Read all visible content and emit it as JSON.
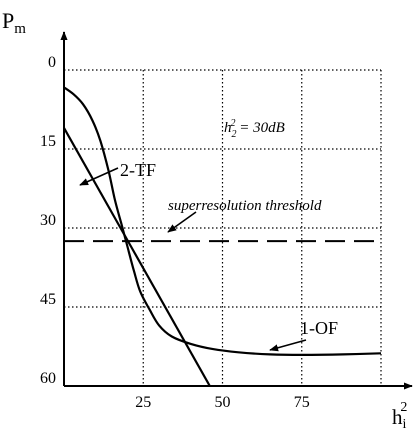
{
  "chart_data": {
    "type": "line",
    "ylabel": {
      "main": "P",
      "sub": "m"
    },
    "xlabel": {
      "main": "h",
      "sub": "i",
      "sup": "2"
    },
    "xlim": [
      0,
      100
    ],
    "ylim": [
      0,
      60
    ],
    "y_inverted": true,
    "x_ticks": [
      25,
      50,
      75
    ],
    "x_tick_labels": [
      "25",
      "50",
      "75"
    ],
    "y_ticks": [
      0,
      15,
      30,
      45,
      60
    ],
    "y_tick_labels": [
      "0",
      "15",
      "30",
      "45",
      "60"
    ],
    "grid": {
      "x": [
        25,
        50,
        75,
        100
      ],
      "y": [
        0,
        15,
        30,
        45
      ],
      "style": "dotted"
    },
    "series": [
      {
        "name": "1-OF",
        "style": "solid",
        "points": [
          [
            0,
            3.3
          ],
          [
            3,
            4.6
          ],
          [
            6,
            6.5
          ],
          [
            9,
            9.6
          ],
          [
            11.5,
            13.5
          ],
          [
            14,
            19
          ],
          [
            16,
            24.5
          ],
          [
            18,
            29
          ],
          [
            20,
            33.5
          ],
          [
            22,
            38
          ],
          [
            24,
            42
          ],
          [
            27,
            45.5
          ],
          [
            30,
            48.5
          ],
          [
            34,
            50.6
          ],
          [
            40,
            52
          ],
          [
            47,
            53
          ],
          [
            55,
            53.6
          ],
          [
            65,
            54
          ],
          [
            75,
            54.1
          ],
          [
            88,
            54
          ],
          [
            100,
            53.8
          ]
        ]
      },
      {
        "name": "2-TF",
        "style": "solid",
        "points": [
          [
            0,
            11
          ],
          [
            46,
            60
          ]
        ]
      }
    ],
    "threshold": {
      "value": 32.5,
      "label": "superresolution threshold",
      "style": "dashed"
    },
    "annotation": {
      "base": "h",
      "sub": "2",
      "sup": "2",
      "rest": " = 30dB"
    },
    "labels": [
      {
        "text": "2-TF",
        "series": "2-TF"
      },
      {
        "text": "1-OF",
        "series": "1-OF"
      },
      {
        "text": "superresolution threshold",
        "series": "threshold"
      }
    ]
  }
}
